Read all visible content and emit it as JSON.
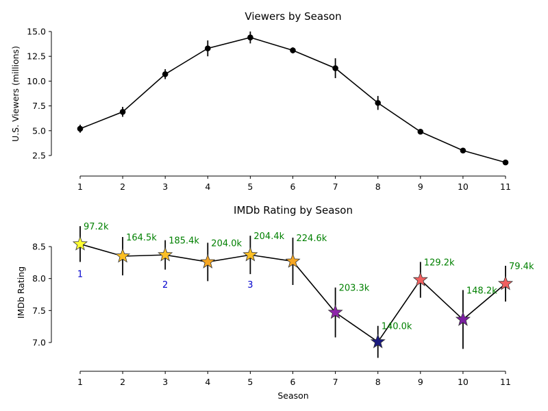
{
  "chart_data": [
    {
      "type": "line",
      "title": "Viewers by Season",
      "xlabel": "",
      "ylabel": "U.S. Viewers (millions)",
      "x": [
        1,
        2,
        3,
        4,
        5,
        6,
        7,
        8,
        9,
        10,
        11
      ],
      "xticks": [
        "1",
        "2",
        "3",
        "4",
        "5",
        "6",
        "7",
        "8",
        "9",
        "10",
        "11"
      ],
      "yticks": [
        "2.5",
        "5.0",
        "7.5",
        "10.0",
        "12.5",
        "15.0"
      ],
      "ylim": [
        2.5,
        15.0
      ],
      "grid": false,
      "series": [
        {
          "values": [
            5.2,
            6.9,
            10.7,
            13.3,
            14.4,
            13.1,
            11.3,
            7.8,
            4.9,
            3.0,
            1.8
          ],
          "err": [
            0.4,
            0.5,
            0.5,
            0.8,
            0.6,
            0.3,
            1.0,
            0.7,
            0.2,
            0.2,
            0.15
          ],
          "color": "#000000"
        }
      ]
    },
    {
      "type": "line",
      "title": "IMDb Rating by Season",
      "xlabel": "Season",
      "ylabel": "IMDb Rating",
      "x": [
        1,
        2,
        3,
        4,
        5,
        6,
        7,
        8,
        9,
        10,
        11
      ],
      "xticks": [
        "1",
        "2",
        "3",
        "4",
        "5",
        "6",
        "7",
        "8",
        "9",
        "10",
        "11"
      ],
      "yticks": [
        "7.0",
        "7.5",
        "8.0",
        "8.5"
      ],
      "ylim": [
        7.0,
        8.5
      ],
      "grid": false,
      "series": [
        {
          "values": [
            8.54,
            8.35,
            8.37,
            8.26,
            8.37,
            8.27,
            7.47,
            7.01,
            7.98,
            7.36,
            7.92
          ],
          "err": [
            0.28,
            0.3,
            0.23,
            0.3,
            0.3,
            0.37,
            0.39,
            0.25,
            0.28,
            0.46,
            0.28
          ],
          "marker_colors": [
            "#ffff33",
            "#fbbf24",
            "#fbbf24",
            "#f5a623",
            "#fbbf24",
            "#f5a623",
            "#8e24aa",
            "#1a1a7e",
            "#f06060",
            "#7b1fa2",
            "#f06060"
          ],
          "color": "#000000"
        }
      ],
      "annotations": {
        "votes": [
          "97.2k",
          "164.5k",
          "185.4k",
          "204.0k",
          "204.4k",
          "224.6k",
          "203.3k",
          "140.0k",
          "129.2k",
          "148.2k",
          "79.4k"
        ],
        "numbers": [
          {
            "x": 1,
            "text": "1"
          },
          {
            "x": 3,
            "text": "2"
          },
          {
            "x": 5,
            "text": "3"
          }
        ]
      }
    }
  ]
}
